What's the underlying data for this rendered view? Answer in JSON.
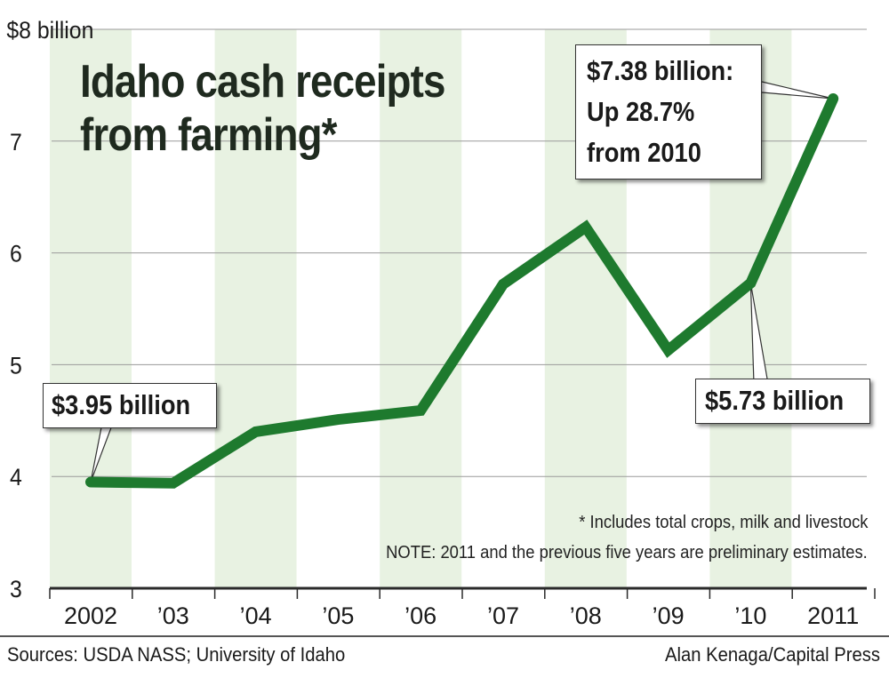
{
  "chart_data": {
    "type": "line",
    "title": "Idaho cash receipts from farming*",
    "categories": [
      "2002",
      "’03",
      "’04",
      "’05",
      "’06",
      "’07",
      "’08",
      "’09",
      "’10",
      "2011"
    ],
    "values": [
      3.95,
      3.94,
      4.4,
      4.51,
      4.59,
      5.72,
      6.23,
      5.13,
      5.73,
      7.38
    ],
    "ylim": [
      3,
      8
    ],
    "yticks": [
      "3",
      "4",
      "5",
      "6",
      "7",
      "$8 billion"
    ],
    "ytick_values": [
      3,
      4,
      5,
      6,
      7,
      8
    ],
    "grid": true,
    "colors": {
      "line": "#1e7a2e",
      "band": "#e8f2e2",
      "grid": "#9a9a9a",
      "axis": "#2a2a2a"
    },
    "annotations": {
      "start": "$3.95 billion",
      "y2010": "$5.73 billion",
      "y2011": [
        "$7.38 billion:",
        "Up 28.7%",
        "from 2010"
      ]
    },
    "footnotes": {
      "asterisk": "* Includes total crops, milk and livestock",
      "note": "NOTE: 2011 and the previous five years are preliminary estimates."
    }
  },
  "source": "Sources: USDA NASS; University of Idaho",
  "credit": "Alan Kenaga/Capital Press"
}
